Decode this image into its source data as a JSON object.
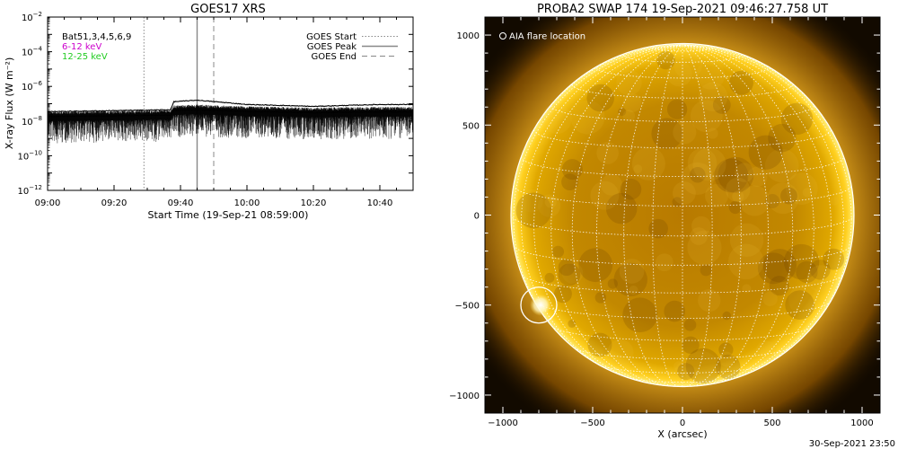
{
  "chart_data": [
    {
      "type": "line",
      "title": "GOES17 XRS",
      "xlabel": "Start Time (19-Sep-21 08:59:00)",
      "ylabel": "X-ray Flux (W m⁻²)",
      "yscale": "log",
      "xlim": [
        "09:00",
        "10:50"
      ],
      "ylim": [
        1e-12,
        0.01
      ],
      "x_ticks": [
        "09:00",
        "09:20",
        "09:40",
        "10:00",
        "10:20",
        "10:40"
      ],
      "y_tick_exponents": [
        -12,
        -10,
        -8,
        -6,
        -4,
        -2
      ],
      "legend_top_left": [
        "Bat51,3,4,5,6,9",
        "6-12 keV",
        "12-25 keV"
      ],
      "legend_top_left_colors": [
        "#000000",
        "#cc00cc",
        "#22cc22"
      ],
      "legend_top_right": [
        "GOES Start",
        "GOES Peak",
        "GOES End"
      ],
      "markers": {
        "start": "09:29",
        "peak": "09:45",
        "end": "09:50"
      },
      "series": [
        {
          "name": "",
          "x": [
            "09:00",
            "09:20",
            "09:37",
            "09:38",
            "09:45",
            "09:55",
            "10:00",
            "10:10",
            "10:20",
            "10:30",
            "10:40",
            "10:50"
          ],
          "values": [
            3.5e-08,
            4e-08,
            4.5e-08,
            1.3e-07,
            1.6e-07,
            1.1e-07,
            9e-08,
            8e-08,
            7e-08,
            8e-08,
            9e-08,
            9e-08
          ]
        },
        {
          "name": "",
          "x": [
            "09:00",
            "09:20",
            "09:37",
            "09:38",
            "09:45",
            "09:55",
            "10:00",
            "10:10",
            "10:20",
            "10:30",
            "10:40",
            "10:50"
          ],
          "values": [
            1.8e-08,
            2e-08,
            2.2e-08,
            4e-08,
            4.5e-08,
            3.8e-08,
            3.5e-08,
            3.3e-08,
            3e-08,
            3.2e-08,
            3.3e-08,
            3.3e-08
          ]
        }
      ]
    },
    {
      "type": "image",
      "title": "PROBA2 SWAP 174 19-Sep-2021 09:46:27.758 UT",
      "xlabel": "X (arcsec)",
      "ylabel": "",
      "xlim": [
        -1100,
        1100
      ],
      "ylim": [
        -1100,
        1100
      ],
      "x_ticks": [
        -1000,
        -500,
        0,
        500,
        1000
      ],
      "y_ticks": [
        -1000,
        -500,
        0,
        500,
        1000
      ],
      "solar_radius_arcsec": 955,
      "flare_location_arcsec": [
        -800,
        -500
      ],
      "flare_circle_radius_arcsec": 100,
      "legend": "O AIA flare location",
      "footer": "30-Sep-2021 23:50"
    }
  ]
}
